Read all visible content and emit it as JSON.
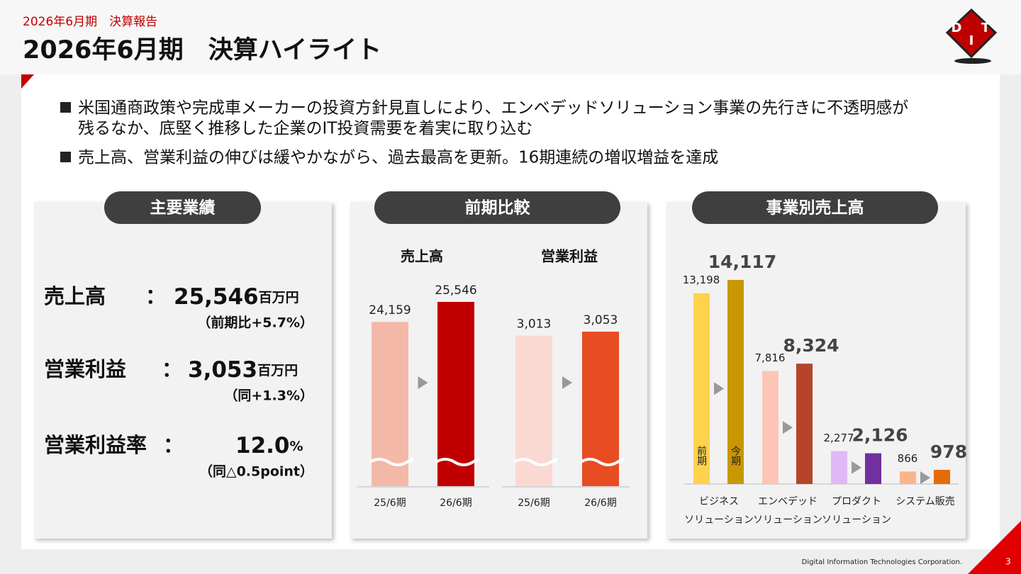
{
  "header": {
    "subtitle": "2026年6月期　決算報告",
    "title": "2026年6月期　決算ハイライト",
    "logo": [
      "D",
      "I",
      "T"
    ]
  },
  "bullets": [
    "米国通商政策や完成車メーカーの投資方針見直しにより、エンベデッドソリューション事業の先行きに不透明感が",
    "残るなか、底堅く推移した企業のIT投資需要を着実に取り込む",
    "売上高、営業利益の伸びは緩やかながら、過去最高を更新。16期連続の増収増益を達成"
  ],
  "panels": [
    "主要業績",
    "前期比較",
    "事業別売上高"
  ],
  "results": {
    "separator": "：",
    "rows": [
      {
        "label": "売上高",
        "value": "25,546",
        "unit": "百万円",
        "note": "（前期比+5.7%）"
      },
      {
        "label": "営業利益",
        "value": "3,053",
        "unit": "百万円",
        "note": "（同+1.3%）"
      },
      {
        "label": "営業利益率",
        "value": "12.0",
        "unit": "%",
        "note": "（同△0.5point）"
      }
    ]
  },
  "chart_data": [
    {
      "type": "bar",
      "title": "売上高",
      "categories": [
        "25/6期",
        "26/6期"
      ],
      "values": [
        24159,
        25546
      ],
      "value_labels": [
        "24,159",
        "25,546"
      ],
      "colors": [
        "#f4b8a8",
        "#c00000"
      ],
      "axis_break": true
    },
    {
      "type": "bar",
      "title": "営業利益",
      "categories": [
        "25/6期",
        "26/6期"
      ],
      "values": [
        3013,
        3053
      ],
      "value_labels": [
        "3,013",
        "3,053"
      ],
      "colors": [
        "#fad9d2",
        "#e84c22"
      ],
      "axis_break": true
    },
    {
      "type": "grouped-bar",
      "categories": [
        [
          "ビジネス",
          "ソリューション"
        ],
        [
          "エンベデッド",
          "ソリューション"
        ],
        [
          "プロダクト",
          "ソリューション"
        ],
        [
          "システム販売"
        ]
      ],
      "series": [
        {
          "name": "前期",
          "colors": [
            "#ffd24d",
            "#fcc5b6",
            "#e0b8f5",
            "#fbb58a"
          ],
          "values": [
            13198,
            7816,
            2277,
            866
          ],
          "value_labels": [
            "13,198",
            "7,816",
            "2,277",
            "866"
          ]
        },
        {
          "name": "今期",
          "colors": [
            "#c99700",
            "#b5442a",
            "#7030a0",
            "#e36c09"
          ],
          "values": [
            14117,
            8324,
            2126,
            978
          ],
          "value_labels": [
            "14,117",
            "8,324",
            "2,126",
            "978"
          ]
        }
      ]
    }
  ],
  "footer": {
    "company": "Digital Information Technologies Corporation.",
    "page": 3
  }
}
